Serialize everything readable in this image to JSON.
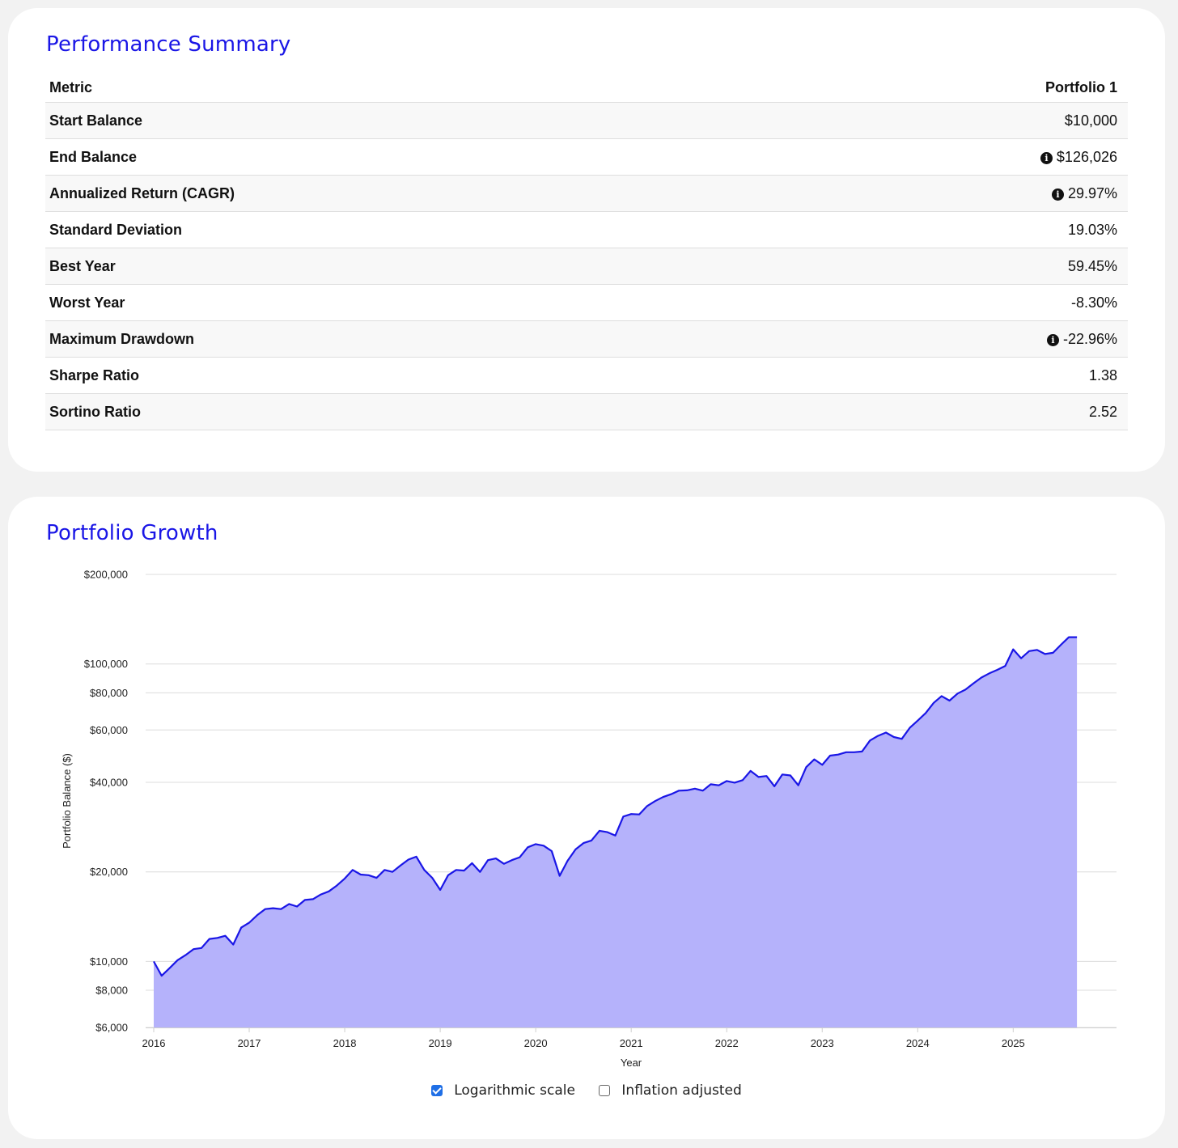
{
  "summary": {
    "title": "Performance Summary",
    "headers": {
      "metric": "Metric",
      "portfolio": "Portfolio 1"
    },
    "rows": [
      {
        "label": "Start Balance",
        "value": "$10,000",
        "info": false
      },
      {
        "label": "End Balance",
        "value": "$126,026",
        "info": true
      },
      {
        "label": "Annualized Return (CAGR)",
        "value": "29.97%",
        "info": true
      },
      {
        "label": "Standard Deviation",
        "value": "19.03%",
        "info": false
      },
      {
        "label": "Best Year",
        "value": "59.45%",
        "info": false
      },
      {
        "label": "Worst Year",
        "value": "-8.30%",
        "info": false
      },
      {
        "label": "Maximum Drawdown",
        "value": "-22.96%",
        "info": true
      },
      {
        "label": "Sharpe Ratio",
        "value": "1.38",
        "info": false
      },
      {
        "label": "Sortino Ratio",
        "value": "2.52",
        "info": false
      }
    ]
  },
  "growth": {
    "title": "Portfolio Growth",
    "options": {
      "log_label": "Logarithmic scale",
      "log_checked": true,
      "inflation_label": "Inflation adjusted",
      "inflation_checked": false
    }
  },
  "chart_data": {
    "type": "area",
    "title": "",
    "xlabel": "Year",
    "ylabel": "Portfolio Balance ($)",
    "yscale": "log",
    "ylim": [
      6000,
      200000
    ],
    "xlim": [
      2016.0,
      2025.98
    ],
    "y_ticks": [
      6000,
      8000,
      10000,
      20000,
      40000,
      60000,
      80000,
      100000,
      200000
    ],
    "y_tick_labels": [
      "$6,000",
      "$8,000",
      "$10,000",
      "$20,000",
      "$40,000",
      "$60,000",
      "$80,000",
      "$100,000",
      "$200,000"
    ],
    "x_ticks": [
      2016,
      2017,
      2018,
      2019,
      2020,
      2021,
      2022,
      2023,
      2024,
      2025
    ],
    "x_tick_labels": [
      "2016",
      "2017",
      "2018",
      "2019",
      "2020",
      "2021",
      "2022",
      "2023",
      "2024",
      "2025"
    ],
    "grid": true,
    "colors": {
      "line": "#1a16e6",
      "fill": "#b5b2fb"
    },
    "series": [
      {
        "x": [
          2016.0,
          2016.083,
          2016.167,
          2016.25,
          2016.333,
          2016.417,
          2016.5,
          2016.583,
          2016.667,
          2016.75,
          2016.833,
          2016.917,
          2017.0,
          2017.083,
          2017.167,
          2017.25,
          2017.333,
          2017.417,
          2017.5,
          2017.583,
          2017.667,
          2017.75,
          2017.833,
          2017.917,
          2018.0,
          2018.083,
          2018.167,
          2018.25,
          2018.333,
          2018.417,
          2018.5,
          2018.583,
          2018.667,
          2018.75,
          2018.833,
          2018.917,
          2019.0,
          2019.083,
          2019.167,
          2019.25,
          2019.333,
          2019.417,
          2019.5,
          2019.583,
          2019.667,
          2019.75,
          2019.833,
          2019.917,
          2020.0,
          2020.083,
          2020.167,
          2020.25,
          2020.333,
          2020.417,
          2020.5,
          2020.583,
          2020.667,
          2020.75,
          2020.833,
          2020.917,
          2021.0,
          2021.083,
          2021.167,
          2021.25,
          2021.333,
          2021.417,
          2021.5,
          2021.583,
          2021.667,
          2021.75,
          2021.833,
          2021.917,
          2022.0,
          2022.083,
          2022.167,
          2022.25,
          2022.333,
          2022.417,
          2022.5,
          2022.583,
          2022.667,
          2022.75,
          2022.833,
          2022.917,
          2023.0,
          2023.083,
          2023.167,
          2023.25,
          2023.333,
          2023.417,
          2023.5,
          2023.583,
          2023.667,
          2023.75,
          2023.833,
          2023.917,
          2024.0,
          2024.083,
          2024.167,
          2024.25,
          2024.333,
          2024.417,
          2024.5,
          2024.583,
          2024.667,
          2024.75,
          2024.833,
          2024.917,
          2025.0,
          2025.083,
          2025.167,
          2025.25,
          2025.333,
          2025.417,
          2025.5,
          2025.583,
          2025.667
        ],
        "y": [
          10000,
          8950,
          9500,
          10100,
          10500,
          11000,
          11100,
          11900,
          12000,
          12200,
          11400,
          13000,
          13500,
          14300,
          15000,
          15100,
          15000,
          15600,
          15300,
          16100,
          16200,
          16800,
          17200,
          18000,
          19000,
          20300,
          19600,
          19500,
          19100,
          20300,
          20000,
          21000,
          22000,
          22500,
          20300,
          19100,
          17400,
          19500,
          20300,
          20200,
          21400,
          20000,
          21900,
          22200,
          21300,
          21900,
          22400,
          24200,
          24800,
          24500,
          23500,
          19400,
          21800,
          23800,
          25000,
          25500,
          27500,
          27200,
          26500,
          30700,
          31300,
          31200,
          33300,
          34600,
          35700,
          36500,
          37500,
          37600,
          38100,
          37500,
          39400,
          39100,
          40400,
          39900,
          40700,
          43700,
          41700,
          42000,
          38800,
          42500,
          42200,
          39100,
          45000,
          47800,
          45800,
          49200,
          49600,
          50500,
          50500,
          50800,
          55300,
          57300,
          58800,
          56800,
          56000,
          61000,
          64500,
          68400,
          74000,
          78000,
          75300,
          79500,
          82000,
          86000,
          90000,
          93000,
          95500,
          98500,
          112000,
          104500,
          110500,
          111500,
          108000,
          109000,
          116000,
          123000,
          123000
        ]
      }
    ]
  }
}
